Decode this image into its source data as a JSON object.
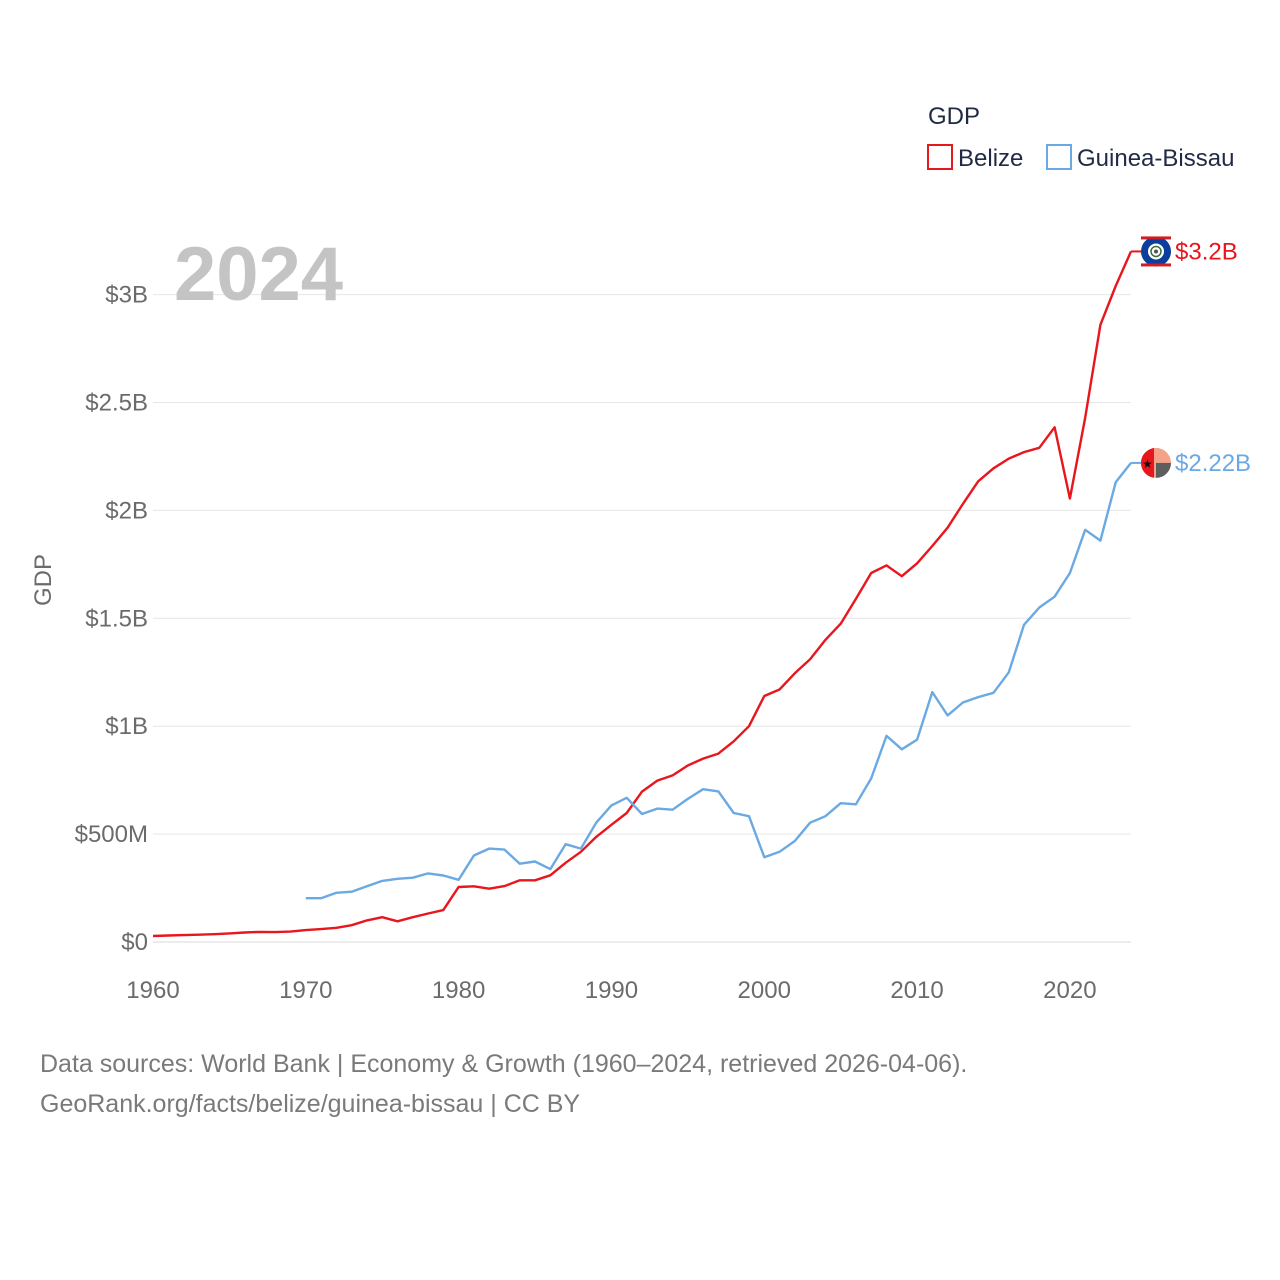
{
  "chart_data": {
    "type": "line",
    "year_label": "2024",
    "ylabel": "GDP",
    "xlim": [
      1960,
      2024
    ],
    "ylim": [
      0,
      3300000000
    ],
    "y_ticks": [
      {
        "value": 0,
        "label": "$0"
      },
      {
        "value": 500000000,
        "label": "$500M"
      },
      {
        "value": 1000000000,
        "label": "$1B"
      },
      {
        "value": 1500000000,
        "label": "$1.5B"
      },
      {
        "value": 2000000000,
        "label": "$2B"
      },
      {
        "value": 2500000000,
        "label": "$2.5B"
      },
      {
        "value": 3000000000,
        "label": "$3B"
      }
    ],
    "x_ticks": [
      {
        "value": 1960,
        "label": "1960"
      },
      {
        "value": 1970,
        "label": "1970"
      },
      {
        "value": 1980,
        "label": "1980"
      },
      {
        "value": 1990,
        "label": "1990"
      },
      {
        "value": 2000,
        "label": "2000"
      },
      {
        "value": 2010,
        "label": "2010"
      },
      {
        "value": 2020,
        "label": "2020"
      }
    ],
    "legend": {
      "title": "GDP",
      "position": "top-right",
      "entries": [
        {
          "name": "Belize",
          "color": "#e8161d"
        },
        {
          "name": "Guinea-Bissau",
          "color": "#6aa9e3"
        }
      ]
    },
    "series": [
      {
        "name": "Belize",
        "color": "#e8161d",
        "end_label": "$3.2B",
        "start_year": 1960,
        "values": [
          28000000.0,
          30000000.0,
          32000000.0,
          34000000.0,
          36000000.0,
          40000000.0,
          44000000.0,
          47000000.0,
          46000000.0,
          48000000.0,
          55000000.0,
          60000000.0,
          66000000.0,
          78000000.0,
          100000000.0,
          115000000.0,
          96000000.0,
          115000000.0,
          132000000.0,
          148000000.0,
          255000000.0,
          258000000.0,
          247000000.0,
          259000000.0,
          286000000.0,
          286000000.0,
          309000000.0,
          367000000.0,
          418000000.0,
          487000000.0,
          543000000.0,
          598000000.0,
          697000000.0,
          748000000.0,
          772000000.0,
          818000000.0,
          850000000.0,
          873000000.0,
          930000000.0,
          1000000000.0,
          1140000000.0,
          1170000000.0,
          1245000000.0,
          1310000000.0,
          1400000000.0,
          1475000000.0,
          1590000000.0,
          1710000000.0,
          1745000000.0,
          1695000000.0,
          1755000000.0,
          1835000000.0,
          1920000000.0,
          2030000000.0,
          2135000000.0,
          2195000000.0,
          2240000000.0,
          2270000000.0,
          2290000000.0,
          2385000000.0,
          2055000000.0,
          2430000000.0,
          2860000000.0,
          3040000000.0,
          3200000000.0
        ]
      },
      {
        "name": "Guinea-Bissau",
        "color": "#6aa9e3",
        "end_label": "$2.22B",
        "start_year": 1970,
        "values": [
          203000000.0,
          203000000.0,
          228000000.0,
          233000000.0,
          258000000.0,
          283000000.0,
          293000000.0,
          298000000.0,
          318000000.0,
          308000000.0,
          288000000.0,
          401000000.0,
          433000000.0,
          428000000.0,
          363000000.0,
          373000000.0,
          338000000.0,
          453000000.0,
          433000000.0,
          553000000.0,
          633000000.0,
          668000000.0,
          593000000.0,
          618000000.0,
          613000000.0,
          663000000.0,
          708000000.0,
          698000000.0,
          598000000.0,
          583000000.0,
          393000000.0,
          418000000.0,
          468000000.0,
          553000000.0,
          583000000.0,
          643000000.0,
          638000000.0,
          758000000.0,
          955000000.0,
          893000000.0,
          938000000.0,
          1158000000.0,
          1050000000.0,
          1110000000.0,
          1135000000.0,
          1155000000.0,
          1250000000.0,
          1470000000.0,
          1550000000.0,
          1600000000.0,
          1710000000.0,
          1910000000.0,
          1860000000.0,
          2130000000.0,
          2220000000.0
        ]
      }
    ]
  },
  "footer": {
    "line1": "Data sources: World Bank | Economy & Growth (1960–2024, retrieved 2026-04-06).",
    "line2": "GeoRank.org/facts/belize/guinea-bissau | CC BY"
  },
  "icons": {
    "belize": "belize-flag-icon",
    "guinea_bissau": "guinea-bissau-flag-icon"
  }
}
